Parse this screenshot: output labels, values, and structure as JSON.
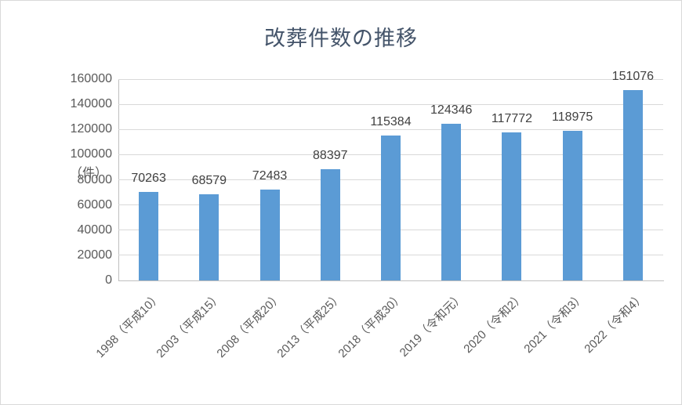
{
  "chart_data": {
    "type": "bar",
    "title": "改葬件数の推移",
    "ylabel": "（件）",
    "categories": [
      "1998（平成10）",
      "2003（平成15）",
      "2008（平成20）",
      "2013（平成25）",
      "2018（平成30）",
      "2019（令和元）",
      "2020（令和2）",
      "2021（令和3）",
      "2022（令和4）"
    ],
    "values": [
      70263,
      68579,
      72483,
      88397,
      115384,
      124346,
      117772,
      118975,
      151076
    ],
    "value_labels": [
      "70263",
      "68579",
      "72483",
      "88397",
      "115384",
      "124346",
      "117772",
      "118975",
      "151076"
    ],
    "ylim": [
      0,
      160000
    ],
    "ytick_step": 20000,
    "ytick_labels": [
      "0",
      "20000",
      "40000",
      "60000",
      "80000",
      "100000",
      "120000",
      "140000",
      "160000"
    ],
    "bar_color": "#5b9bd5",
    "grid": true,
    "legend_position": "none"
  }
}
